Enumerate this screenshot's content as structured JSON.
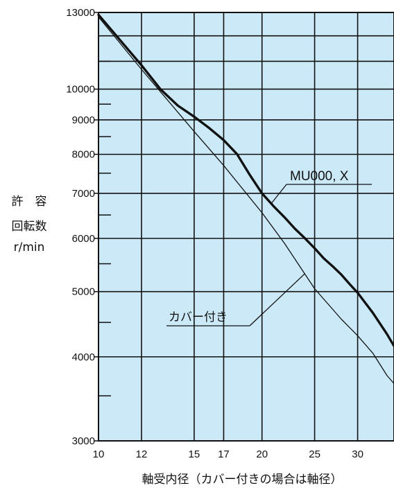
{
  "chart_data": {
    "type": "line",
    "x_scale": "log",
    "y_scale": "log",
    "xlim": [
      10,
      35
    ],
    "ylim": [
      3000,
      13000
    ],
    "x_ticks": [
      10,
      12,
      15,
      17,
      20,
      25,
      30
    ],
    "y_ticks": [
      3000,
      4000,
      5000,
      6000,
      7000,
      8000,
      9000,
      10000,
      13000
    ],
    "y_minor_ticks": [
      3500,
      4500,
      5500,
      6500,
      7500,
      8500,
      9500,
      11000,
      12000
    ],
    "x_gridlines": [
      10,
      12,
      15,
      17,
      20,
      25,
      30
    ],
    "y_gridlines": [
      4000,
      5000,
      6000,
      7000,
      8000,
      9000,
      10000,
      11000,
      12000
    ],
    "xlabel": "軸受内径（カバー付きの場合は軸径）",
    "ylabel_lines": [
      "許　容",
      "回転数",
      "r/min"
    ],
    "grid": true,
    "background": "#cbe9f7",
    "series": [
      {
        "name": "MU000, X",
        "style": "thick",
        "x": [
          10,
          12,
          13,
          14,
          15,
          16,
          17,
          18,
          19,
          20,
          21,
          22,
          23,
          24,
          25,
          26,
          27,
          28,
          29,
          30,
          32,
          34,
          35
        ],
        "y": [
          12900,
          10850,
          10000,
          9450,
          9100,
          8750,
          8400,
          8000,
          7450,
          7000,
          6700,
          6450,
          6200,
          6000,
          5800,
          5600,
          5450,
          5300,
          5130,
          4980,
          4650,
          4320,
          4150
        ]
      },
      {
        "name": "カバー付き",
        "style": "thin",
        "x": [
          10,
          12,
          15,
          17,
          20,
          22,
          25,
          28,
          30,
          32,
          34,
          35
        ],
        "y": [
          12800,
          10700,
          8650,
          7700,
          6550,
          5900,
          5050,
          4550,
          4300,
          4050,
          3750,
          3650
        ]
      }
    ]
  }
}
